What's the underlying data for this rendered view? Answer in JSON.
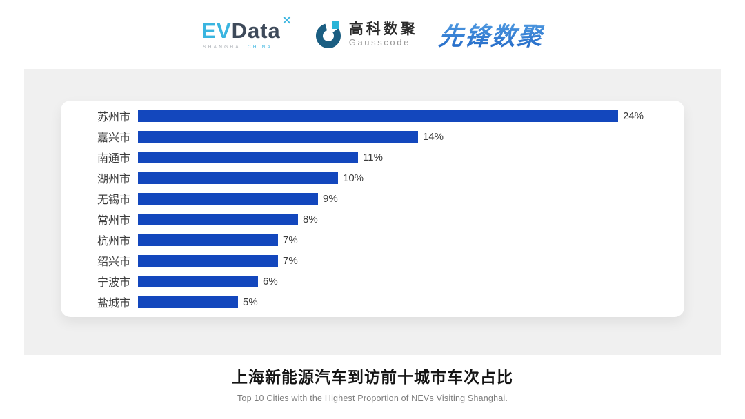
{
  "header": {
    "evdata": {
      "ev": "EV",
      "data": "Data",
      "mark": "✕",
      "sub_left": "SHANGHAI",
      "sub_right": "CHINA"
    },
    "gausscode": {
      "cn": "高科数聚",
      "en": "Gausscode"
    },
    "pioneer": {
      "text": "先锋数聚"
    }
  },
  "chart_data": {
    "type": "bar",
    "orientation": "horizontal",
    "categories": [
      "苏州市",
      "嘉兴市",
      "南通市",
      "湖州市",
      "无锡市",
      "常州市",
      "杭州市",
      "绍兴市",
      "宁波市",
      "盐城市"
    ],
    "values": [
      24,
      14,
      11,
      10,
      9,
      8,
      7,
      7,
      6,
      5
    ],
    "value_labels": [
      "24%",
      "14%",
      "11%",
      "10%",
      "9%",
      "8%",
      "7%",
      "7%",
      "6%",
      "5%"
    ],
    "unit": "%",
    "xlim": [
      0,
      25
    ],
    "grid": false,
    "legend": "none",
    "bar_color": "#1347bd",
    "title": "上海新能源汽车到访前十城市车次占比",
    "subtitle": "Top 10 Cities with the Highest Proportion of  NEVs Visiting Shanghai."
  },
  "colors": {
    "accent_blue": "#1347bd",
    "cyan": "#3ab5e0",
    "dark_slate": "#3e4a5a",
    "panel_gray": "#f0f0f0",
    "gauss_teal": "#1b5e82"
  }
}
